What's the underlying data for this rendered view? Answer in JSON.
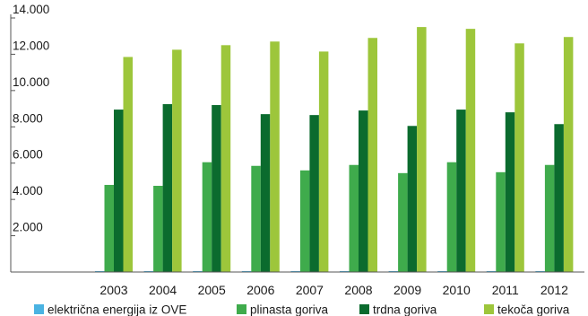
{
  "chart_data": {
    "type": "bar",
    "title": "",
    "xlabel": "",
    "ylabel": "",
    "ylim": [
      0,
      14000
    ],
    "yticks": [
      0,
      2000,
      4000,
      6000,
      8000,
      10000,
      12000,
      14000
    ],
    "ytick_labels": [
      "",
      "2.000",
      "4.000",
      "6.000",
      "8.000",
      "10.000",
      "12.000",
      "14.000"
    ],
    "grid": false,
    "legend_position": "bottom",
    "categories": [
      "2003",
      "2004",
      "2005",
      "2006",
      "2007",
      "2008",
      "2009",
      "2010",
      "2011",
      "2012"
    ],
    "series": [
      {
        "name": "električna energija iz OVE",
        "color": "#4ab3e2",
        "values": [
          30,
          30,
          30,
          30,
          30,
          30,
          30,
          30,
          30,
          30
        ]
      },
      {
        "name": "plinasta goriva",
        "color": "#3fab4c",
        "values": [
          4800,
          4750,
          6050,
          5850,
          5600,
          5900,
          5450,
          6050,
          5500,
          5900
        ]
      },
      {
        "name": "trdna goriva",
        "color": "#0b6b2e",
        "values": [
          8950,
          9250,
          9200,
          8700,
          8650,
          8900,
          8050,
          8950,
          8800,
          8150
        ]
      },
      {
        "name": "tekoča goriva",
        "color": "#9dc63b",
        "values": [
          11850,
          12250,
          12500,
          12700,
          12150,
          12900,
          13500,
          13400,
          12600,
          12950
        ]
      }
    ]
  }
}
